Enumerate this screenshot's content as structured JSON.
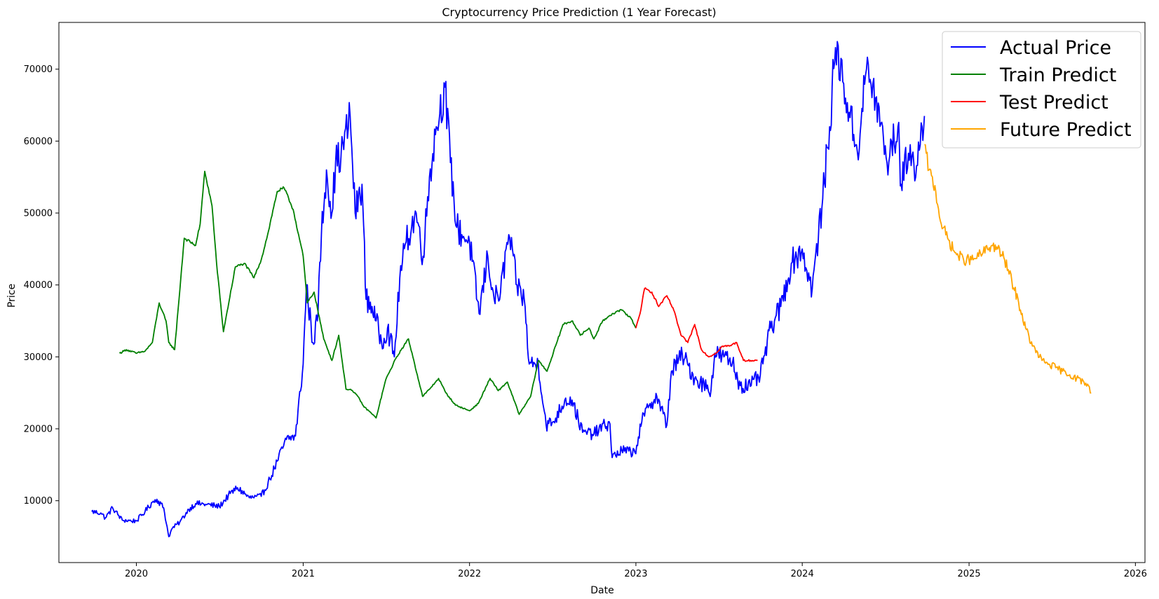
{
  "chart_data": {
    "type": "line",
    "title": "Cryptocurrency Price Prediction (1 Year Forecast)",
    "xlabel": "Date",
    "ylabel": "Price",
    "xlim": [
      "2019-07-15",
      "2026-01-22"
    ],
    "ylim": [
      1400,
      76500
    ],
    "x_ticks": [
      "2020",
      "2021",
      "2022",
      "2023",
      "2024",
      "2025",
      "2026"
    ],
    "y_ticks": [
      10000,
      20000,
      30000,
      40000,
      50000,
      60000,
      70000
    ],
    "grid": false,
    "legend": "top-right",
    "series": [
      {
        "name": "Actual Price",
        "color": "#0000ff",
        "x": [
          "2019-09-25",
          "2019-10-15",
          "2019-10-25",
          "2019-11-10",
          "2019-12-01",
          "2019-12-20",
          "2020-01-01",
          "2020-01-20",
          "2020-02-05",
          "2020-02-15",
          "2020-03-01",
          "2020-03-12",
          "2020-03-20",
          "2020-04-05",
          "2020-04-25",
          "2020-05-10",
          "2020-06-01",
          "2020-07-01",
          "2020-07-25",
          "2020-08-10",
          "2020-09-05",
          "2020-10-01",
          "2020-10-20",
          "2020-11-05",
          "2020-11-25",
          "2020-12-15",
          "2021-01-01",
          "2021-01-08",
          "2021-01-22",
          "2021-02-01",
          "2021-02-10",
          "2021-02-21",
          "2021-03-05",
          "2021-03-13",
          "2021-03-25",
          "2021-04-14",
          "2021-04-25",
          "2021-05-10",
          "2021-05-19",
          "2021-06-01",
          "2021-06-10",
          "2021-06-22",
          "2021-07-05",
          "2021-07-20",
          "2021-08-01",
          "2021-08-15",
          "2021-09-06",
          "2021-09-21",
          "2021-10-05",
          "2021-10-20",
          "2021-11-08",
          "2021-11-20",
          "2021-12-04",
          "2021-12-15",
          "2022-01-01",
          "2022-01-22",
          "2022-02-10",
          "2022-02-24",
          "2022-03-10",
          "2022-03-28",
          "2022-04-15",
          "2022-05-01",
          "2022-05-12",
          "2022-06-01",
          "2022-06-18",
          "2022-07-05",
          "2022-07-29",
          "2022-08-14",
          "2022-09-06",
          "2022-10-01",
          "2022-10-25",
          "2022-11-05",
          "2022-11-10",
          "2022-12-01",
          "2022-12-30",
          "2023-01-14",
          "2023-02-01",
          "2023-02-16",
          "2023-03-10",
          "2023-03-20",
          "2023-04-13",
          "2023-05-10",
          "2023-06-15",
          "2023-06-23",
          "2023-07-13",
          "2023-08-01",
          "2023-08-18",
          "2023-09-11",
          "2023-10-01",
          "2023-10-24",
          "2023-11-15",
          "2023-12-08",
          "2024-01-01",
          "2024-01-11",
          "2024-01-23",
          "2024-02-15",
          "2024-03-01",
          "2024-03-14",
          "2024-04-01",
          "2024-04-13",
          "2024-05-01",
          "2024-05-21",
          "2024-06-10",
          "2024-07-05",
          "2024-07-29",
          "2024-08-05",
          "2024-08-25",
          "2024-09-06",
          "2024-09-20",
          "2024-09-25"
        ],
        "y": [
          8500,
          8300,
          7600,
          9000,
          7300,
          7200,
          7200,
          8500,
          9800,
          10200,
          9000,
          5000,
          6200,
          7000,
          8800,
          9600,
          9500,
          9200,
          11000,
          11800,
          10400,
          10600,
          13000,
          15500,
          18500,
          19000,
          29000,
          40000,
          32000,
          35000,
          47000,
          56000,
          50000,
          57000,
          58000,
          63500,
          50000,
          54000,
          38000,
          37000,
          35000,
          32000,
          34000,
          30000,
          41000,
          46000,
          50000,
          44000,
          55000,
          62000,
          67500,
          57000,
          48000,
          47000,
          46000,
          36000,
          44000,
          38000,
          39000,
          47000,
          40000,
          38000,
          29000,
          29000,
          20500,
          21000,
          24000,
          24000,
          19500,
          19300,
          20500,
          20700,
          16000,
          17000,
          16700,
          21000,
          23500,
          24500,
          20500,
          28000,
          30300,
          27000,
          25500,
          30500,
          30000,
          29200,
          26000,
          26000,
          27500,
          34000,
          37000,
          43000,
          45000,
          42000,
          39500,
          52000,
          62000,
          73000,
          68000,
          64000,
          58500,
          70000,
          66000,
          57000,
          62000,
          54000,
          59500,
          55000,
          62000,
          63500
        ]
      },
      {
        "name": "Train Predict",
        "color": "#008000",
        "x": [
          "2019-11-25",
          "2019-12-10",
          "2020-01-01",
          "2020-01-20",
          "2020-02-05",
          "2020-02-20",
          "2020-03-06",
          "2020-03-12",
          "2020-03-25",
          "2020-04-15",
          "2020-05-10",
          "2020-05-20",
          "2020-05-30",
          "2020-06-15",
          "2020-06-25",
          "2020-07-10",
          "2020-08-05",
          "2020-08-25",
          "2020-09-15",
          "2020-10-01",
          "2020-10-15",
          "2020-11-05",
          "2020-11-20",
          "2020-12-10",
          "2021-01-01",
          "2021-01-10",
          "2021-01-25",
          "2021-02-15",
          "2021-03-05",
          "2021-03-20",
          "2021-04-05",
          "2021-04-15",
          "2021-05-01",
          "2021-05-15",
          "2021-05-25",
          "2021-06-10",
          "2021-07-01",
          "2021-07-25",
          "2021-08-20",
          "2021-09-20",
          "2021-10-05",
          "2021-10-25",
          "2021-11-10",
          "2021-12-01",
          "2022-01-01",
          "2022-01-20",
          "2022-02-15",
          "2022-03-05",
          "2022-03-25",
          "2022-04-20",
          "2022-05-15",
          "2022-06-01",
          "2022-06-20",
          "2022-07-25",
          "2022-08-15",
          "2022-09-01",
          "2022-09-20",
          "2022-10-01",
          "2022-10-20",
          "2022-11-10",
          "2022-12-01",
          "2022-12-20",
          "2023-01-01"
        ],
        "y": [
          30500,
          31000,
          30500,
          30800,
          32000,
          37500,
          35000,
          32000,
          31000,
          46500,
          45500,
          48500,
          55800,
          51000,
          43000,
          33500,
          42500,
          43000,
          41000,
          43500,
          47000,
          53000,
          53500,
          50500,
          44000,
          37500,
          39000,
          32500,
          29500,
          33000,
          25500,
          25500,
          24500,
          23000,
          22500,
          21500,
          26800,
          30000,
          32500,
          24500,
          25500,
          27000,
          25000,
          23300,
          22500,
          23500,
          27000,
          25300,
          26500,
          22000,
          24500,
          29500,
          28000,
          34500,
          35000,
          33000,
          34000,
          32500,
          35000,
          36000,
          36500,
          35500,
          34000
        ]
      },
      {
        "name": "Test Predict",
        "color": "#ff0000",
        "x": [
          "2023-01-01",
          "2023-01-10",
          "2023-01-20",
          "2023-02-05",
          "2023-02-20",
          "2023-03-10",
          "2023-03-25",
          "2023-04-10",
          "2023-04-25",
          "2023-05-10",
          "2023-05-25",
          "2023-06-10",
          "2023-06-25",
          "2023-07-10",
          "2023-07-25",
          "2023-08-10",
          "2023-08-25",
          "2023-09-10",
          "2023-09-25"
        ],
        "y": [
          34000,
          36000,
          39500,
          39000,
          37000,
          38500,
          36500,
          33000,
          32000,
          34500,
          31000,
          30000,
          30500,
          31500,
          31500,
          32000,
          29500,
          29500,
          29500
        ]
      },
      {
        "name": "Future Predict",
        "color": "#ffa500",
        "x": [
          "2024-09-25",
          "2024-10-05",
          "2024-10-20",
          "2024-11-01",
          "2024-11-15",
          "2024-12-01",
          "2024-12-20",
          "2025-01-10",
          "2025-02-01",
          "2025-02-20",
          "2025-03-05",
          "2025-03-20",
          "2025-04-05",
          "2025-04-20",
          "2025-05-05",
          "2025-05-20",
          "2025-06-10",
          "2025-06-25",
          "2025-07-10",
          "2025-07-25",
          "2025-08-10",
          "2025-08-25",
          "2025-09-10",
          "2025-09-20",
          "2025-09-26"
        ],
        "y": [
          59500,
          56000,
          53000,
          48500,
          46500,
          44500,
          43500,
          43500,
          44500,
          45500,
          45000,
          43500,
          40500,
          37500,
          34000,
          31500,
          29500,
          29000,
          28500,
          28000,
          27500,
          27000,
          26500,
          26000,
          25000
        ]
      }
    ]
  }
}
